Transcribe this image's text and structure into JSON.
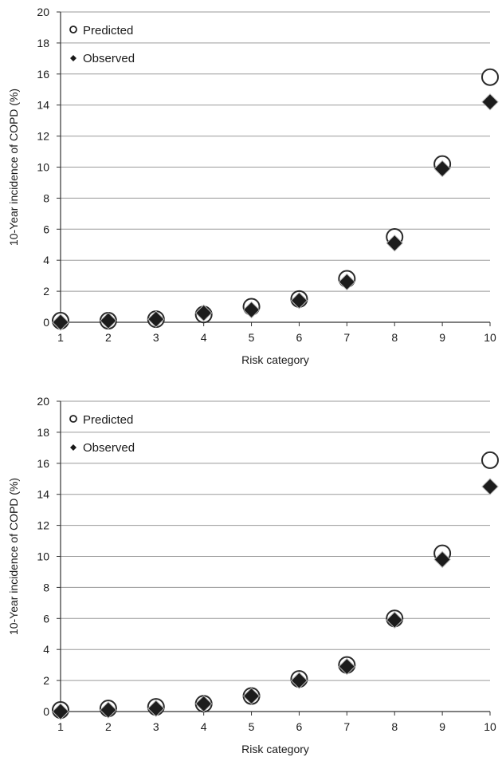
{
  "chart_data": [
    {
      "type": "scatter",
      "xlabel": "Risk category",
      "ylabel": "10-Year incidence of COPD (%)",
      "x": [
        1,
        2,
        3,
        4,
        5,
        6,
        7,
        8,
        9,
        10
      ],
      "xlim": [
        1,
        10
      ],
      "ylim": [
        0,
        20
      ],
      "y_ticks": [
        0,
        2,
        4,
        6,
        8,
        10,
        12,
        14,
        16,
        18,
        20
      ],
      "grid": true,
      "legend_position": "top-left",
      "series": [
        {
          "name": "Predicted",
          "marker": "open-circle",
          "values": [
            0.1,
            0.1,
            0.2,
            0.5,
            1.0,
            1.5,
            2.8,
            5.5,
            10.2,
            15.8
          ]
        },
        {
          "name": "Observed",
          "marker": "filled-diamond",
          "values": [
            0.0,
            0.1,
            0.2,
            0.6,
            0.8,
            1.4,
            2.6,
            5.1,
            9.9,
            14.2
          ]
        }
      ]
    },
    {
      "type": "scatter",
      "xlabel": "Risk category",
      "ylabel": "10-Year incidence of COPD (%)",
      "x": [
        1,
        2,
        3,
        4,
        5,
        6,
        7,
        8,
        9,
        10
      ],
      "xlim": [
        1,
        10
      ],
      "ylim": [
        0,
        20
      ],
      "y_ticks": [
        0,
        2,
        4,
        6,
        8,
        10,
        12,
        14,
        16,
        18,
        20
      ],
      "grid": true,
      "legend_position": "top-left",
      "series": [
        {
          "name": "Predicted",
          "marker": "open-circle",
          "values": [
            0.1,
            0.2,
            0.3,
            0.5,
            1.0,
            2.1,
            3.0,
            6.0,
            10.2,
            16.2
          ]
        },
        {
          "name": "Observed",
          "marker": "filled-diamond",
          "values": [
            0.0,
            0.1,
            0.2,
            0.5,
            1.0,
            2.0,
            2.9,
            5.9,
            9.8,
            14.5
          ]
        }
      ]
    }
  ]
}
